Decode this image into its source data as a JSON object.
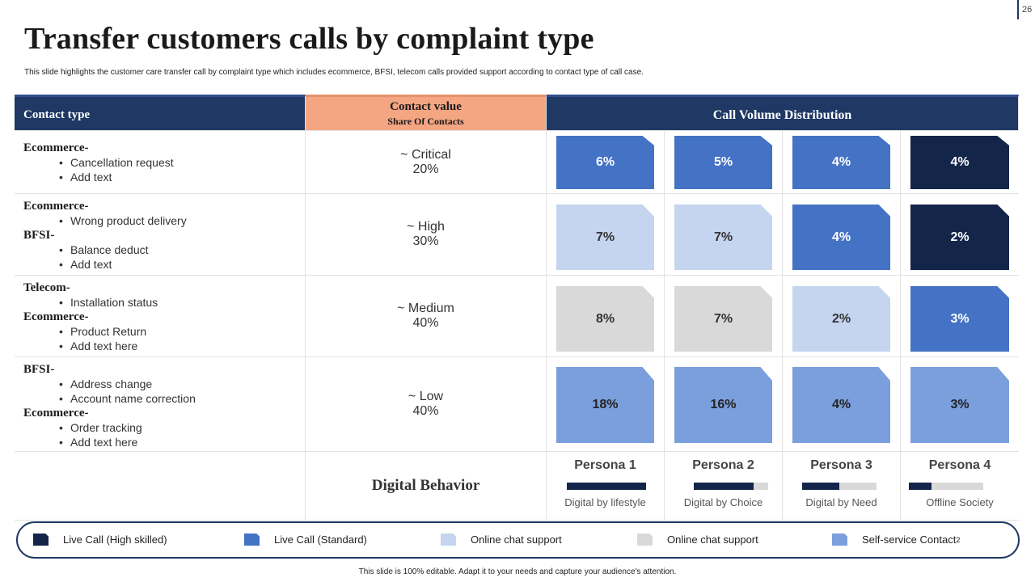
{
  "page_number": "26",
  "title": "Transfer customers calls by complaint type",
  "subtitle": "This slide highlights the customer care transfer call by complaint type which includes ecommerce, BFSI, telecom calls provided support according to contact type of call case.",
  "header": {
    "contact_type": "Contact type",
    "contact_value": "Contact value",
    "share_of_contacts": "Share  Of Contacts",
    "distribution": "Call Volume Distribution"
  },
  "rows": [
    {
      "groups": [
        {
          "category": "Ecommerce-",
          "items": [
            "Cancellation request",
            "Add text"
          ]
        }
      ],
      "level": "~ Critical",
      "share": "20%",
      "cells": [
        "6%",
        "5%",
        "4%",
        "4%"
      ]
    },
    {
      "groups": [
        {
          "category": "Ecommerce-",
          "items": [
            "Wrong product delivery"
          ]
        },
        {
          "category": "BFSI-",
          "items": [
            "Balance deduct",
            "Add text"
          ]
        }
      ],
      "level": "~ High",
      "share": "30%",
      "cells": [
        "7%",
        "7%",
        "4%",
        "2%"
      ]
    },
    {
      "groups": [
        {
          "category": "Telecom-",
          "items": [
            "Installation status"
          ]
        },
        {
          "category": "Ecommerce-",
          "items": [
            "Product Return",
            "Add text here"
          ]
        }
      ],
      "level": "~ Medium",
      "share": "40%",
      "cells": [
        "8%",
        "7%",
        "2%",
        "3%"
      ]
    },
    {
      "groups": [
        {
          "category": "BFSI-",
          "items": [
            "Address change",
            "Account name correction"
          ]
        },
        {
          "category": "Ecommerce-",
          "items": [
            "Order tracking",
            "Add text here"
          ]
        }
      ],
      "level": "~ Low",
      "share": "40%",
      "cells": [
        "18%",
        "16%",
        "4%",
        "3%"
      ]
    }
  ],
  "digital_behavior": "Digital Behavior",
  "personas": [
    {
      "name": "Persona 1",
      "label": "Digital by lifestyle",
      "fill": 1.0
    },
    {
      "name": "Persona 2",
      "label": "Digital by Choice",
      "fill": 0.8
    },
    {
      "name": "Persona 3",
      "label": "Digital by Need",
      "fill": 0.5
    },
    {
      "name": "Persona 4",
      "label": "Offline Society",
      "fill": 0.3
    }
  ],
  "legend": [
    {
      "label": "Live Call (High skilled)",
      "color": "#14254a"
    },
    {
      "label": "Live Call (Standard)",
      "color": "#4472c4"
    },
    {
      "label": "Online chat support",
      "color": "#c5d4ef"
    },
    {
      "label": "Online chat support",
      "color": "#d9d9d9"
    },
    {
      "label": "Self-service  Contact",
      "color": "#7b9fdd",
      "sup": "2"
    }
  ],
  "colors": {
    "navy": "#1f3864",
    "peach": "#f4a582",
    "live_high": "#14254a",
    "live_std": "#4472c4",
    "chat_light": "#c5d4ef",
    "chat_grey": "#d9d9d9",
    "self_service": "#7b9fdd"
  },
  "footer": "This slide is 100% editable. Adapt it to your needs and capture your audience's attention."
}
